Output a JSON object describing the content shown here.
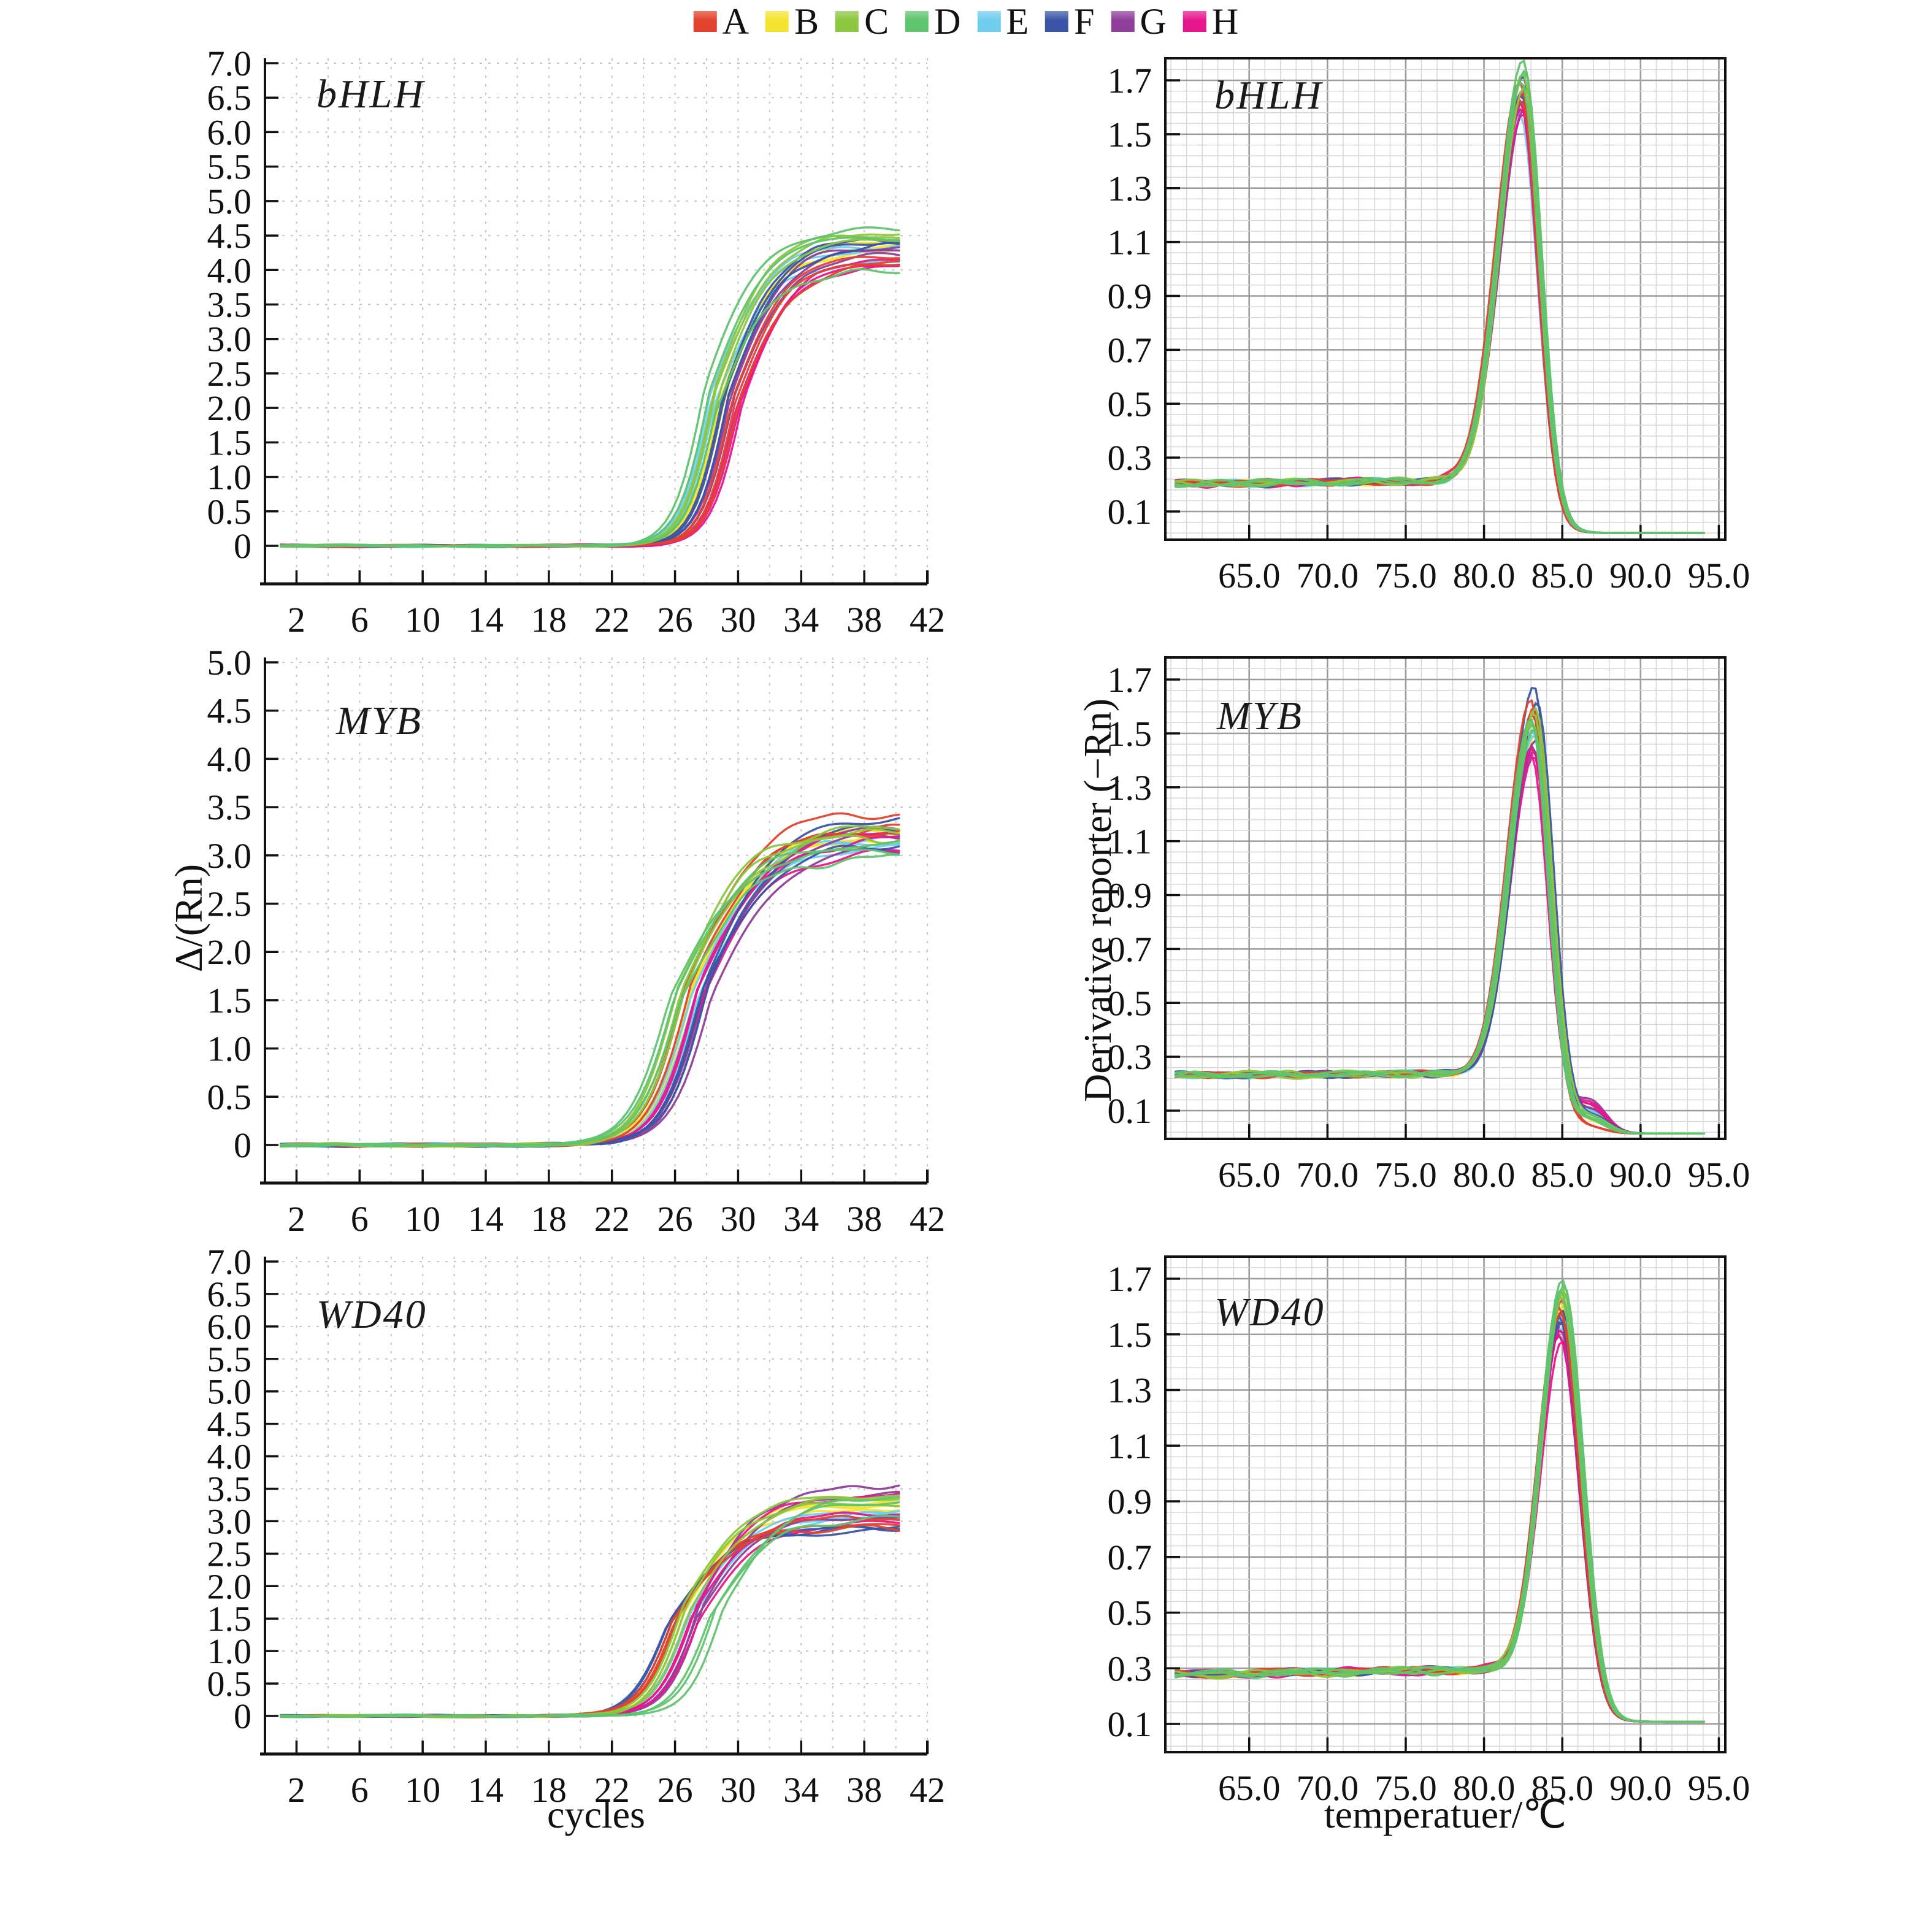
{
  "legend": {
    "items": [
      {
        "label": "A",
        "color": "#e2422e"
      },
      {
        "label": "B",
        "color": "#f4e32f"
      },
      {
        "label": "C",
        "color": "#8cc63f"
      },
      {
        "label": "D",
        "color": "#5fc46e"
      },
      {
        "label": "E",
        "color": "#6fcdee"
      },
      {
        "label": "F",
        "color": "#3a55a5"
      },
      {
        "label": "G",
        "color": "#8f3f99"
      },
      {
        "label": "H",
        "color": "#e8168c"
      }
    ]
  },
  "axis_titles": {
    "amp_x": "cycles",
    "melt_x": "temperatuer/℃",
    "amp_y": "Δ/(Rn)",
    "melt_y": "Derivative reporter (−Rn)"
  },
  "chart_data": [
    {
      "id": "bhlh-amp",
      "type": "line",
      "title": "bHLH",
      "panel": "amplification",
      "row": 1,
      "col": 1,
      "xlim": [
        0,
        42
      ],
      "ylim": [
        0,
        7
      ],
      "grid": "dashed",
      "x_tick_values": [
        2,
        6,
        10,
        14,
        18,
        22,
        26,
        30,
        34,
        38,
        42
      ],
      "x_tick_labels": [
        "2",
        "6",
        "10",
        "14",
        "18",
        "22",
        "26",
        "30",
        "34",
        "38",
        "42"
      ],
      "y_tick_values": [
        7,
        6.5,
        6,
        5.5,
        5,
        4.5,
        4,
        3.5,
        3,
        2.5,
        2,
        1.5,
        1,
        0.5,
        0
      ],
      "y_tick_labels": [
        "7.0",
        "6.5",
        "6.0",
        "5.5",
        "5.0",
        "4.5",
        "4.0",
        "3.5",
        "3.0",
        "2.5",
        "2.0",
        "1.5",
        "1.0",
        "0.5",
        "0"
      ],
      "params": {
        "k": 1.0
      },
      "series": [
        {
          "group": "A",
          "mid": [
            29.8,
            30.0,
            29.6
          ],
          "plateau": [
            4.15,
            4.08,
            4.22
          ]
        },
        {
          "group": "B",
          "mid": [
            29.0,
            29.2,
            28.9
          ],
          "plateau": [
            4.32,
            4.4,
            4.28
          ]
        },
        {
          "group": "C",
          "mid": [
            28.6,
            28.8,
            28.5
          ],
          "plateau": [
            4.5,
            4.44,
            4.55
          ]
        },
        {
          "group": "D",
          "mid": [
            27.9,
            28.2,
            28.6
          ],
          "plateau": [
            4.58,
            4.48,
            3.97
          ]
        },
        {
          "group": "E",
          "mid": [
            28.3,
            28.5,
            28.2
          ],
          "plateau": [
            4.28,
            4.1,
            4.35
          ]
        },
        {
          "group": "F",
          "mid": [
            29.2,
            29.4,
            29.1
          ],
          "plateau": [
            4.42,
            4.35,
            4.46
          ]
        },
        {
          "group": "G",
          "mid": [
            29.5,
            29.7,
            29.4
          ],
          "plateau": [
            4.3,
            4.22,
            4.35
          ]
        },
        {
          "group": "H",
          "mid": [
            30.1,
            30.3,
            29.9
          ],
          "plateau": [
            4.12,
            4.2,
            4.05
          ]
        }
      ]
    },
    {
      "id": "bhlh-melt",
      "type": "line",
      "title": "bHLH",
      "panel": "melt",
      "row": 1,
      "col": 2,
      "xlim": [
        59.8,
        95.3
      ],
      "ylim": [
        0,
        1.79
      ],
      "grid": "fine",
      "x_tick_values": [
        65,
        70,
        75,
        80,
        85,
        90,
        95
      ],
      "x_tick_labels": [
        "65.0",
        "70.0",
        "75.0",
        "80.0",
        "85.0",
        "90.0",
        "95.0"
      ],
      "y_tick_values": [
        1.7,
        1.5,
        1.3,
        1.1,
        0.9,
        0.7,
        0.5,
        0.3,
        0.1
      ],
      "y_tick_labels": [
        "1.7",
        "1.5",
        "1.3",
        "1.1",
        "0.9",
        "0.7",
        "0.5",
        "0.3",
        "0.1"
      ],
      "params": {
        "baseline": 0.203,
        "slope": 0.0006,
        "tail": 0.02,
        "sigma_left": 1.55,
        "sigma_right": 1.05,
        "drop_dx": 2.0,
        "shoulder_dx": 3.6,
        "shoulder_amp": {}
      },
      "series": [
        {
          "group": "A",
          "center": [
            82.3,
            82.5,
            82.4
          ],
          "peak": [
            1.7,
            1.66,
            1.63
          ]
        },
        {
          "group": "B",
          "center": [
            82.4,
            82.6,
            82.5
          ],
          "peak": [
            1.65,
            1.62,
            1.6
          ]
        },
        {
          "group": "C",
          "center": [
            82.5,
            82.4,
            82.6
          ],
          "peak": [
            1.73,
            1.7,
            1.68
          ]
        },
        {
          "group": "D",
          "center": [
            82.5,
            82.6,
            82.4
          ],
          "peak": [
            1.78,
            1.74,
            1.7
          ]
        },
        {
          "group": "E",
          "center": [
            82.4,
            82.5,
            82.3
          ],
          "peak": [
            1.62,
            1.6,
            1.58
          ]
        },
        {
          "group": "F",
          "center": [
            82.5,
            82.6,
            82.4
          ],
          "peak": [
            1.72,
            1.68,
            1.65
          ]
        },
        {
          "group": "G",
          "center": [
            82.4,
            82.5,
            82.6
          ],
          "peak": [
            1.66,
            1.63,
            1.6
          ]
        },
        {
          "group": "H",
          "center": [
            82.3,
            82.4,
            82.5
          ],
          "peak": [
            1.63,
            1.6,
            1.58
          ]
        }
      ]
    },
    {
      "id": "myb-amp",
      "type": "line",
      "title": "MYB",
      "panel": "amplification",
      "row": 2,
      "col": 1,
      "ylabel": "Δ/(Rn)",
      "xlim": [
        0,
        42
      ],
      "ylim": [
        0,
        5
      ],
      "grid": "dashed",
      "x_tick_values": [
        2,
        6,
        10,
        14,
        18,
        22,
        26,
        30,
        34,
        38,
        42
      ],
      "x_tick_labels": [
        "2",
        "6",
        "10",
        "14",
        "18",
        "22",
        "26",
        "30",
        "34",
        "38",
        "42"
      ],
      "y_tick_values": [
        5,
        4.5,
        4,
        3.5,
        3,
        2.5,
        2,
        1.5,
        1,
        0.5,
        0
      ],
      "y_tick_labels": [
        "5.0",
        "4.5",
        "4.0",
        "3.5",
        "3.0",
        "2.5",
        "2.0",
        "1.5",
        "1.0",
        "0.5",
        "0"
      ],
      "params": {
        "k": 1.3
      },
      "series": [
        {
          "group": "A",
          "mid": [
            26.8,
            27.0,
            26.6
          ],
          "plateau": [
            3.45,
            3.3,
            3.25
          ]
        },
        {
          "group": "B",
          "mid": [
            27.0,
            27.2,
            26.9
          ],
          "plateau": [
            3.22,
            3.28,
            3.18
          ]
        },
        {
          "group": "C",
          "mid": [
            26.4,
            26.6,
            26.2
          ],
          "plateau": [
            3.25,
            3.2,
            3.3
          ]
        },
        {
          "group": "D",
          "mid": [
            25.7,
            26.0,
            26.3
          ],
          "plateau": [
            3.05,
            3.12,
            2.98
          ]
        },
        {
          "group": "E",
          "mid": [
            27.3,
            27.5,
            27.1
          ],
          "plateau": [
            3.15,
            3.1,
            3.2
          ]
        },
        {
          "group": "F",
          "mid": [
            27.9,
            28.1,
            27.7
          ],
          "plateau": [
            3.4,
            3.32,
            3.12
          ]
        },
        {
          "group": "G",
          "mid": [
            28.1,
            28.3,
            27.9
          ],
          "plateau": [
            3.3,
            3.08,
            3.22
          ]
        },
        {
          "group": "H",
          "mid": [
            27.5,
            27.7,
            27.4
          ],
          "plateau": [
            3.25,
            3.05,
            3.18
          ]
        }
      ]
    },
    {
      "id": "myb-melt",
      "type": "line",
      "title": "MYB",
      "panel": "melt",
      "row": 2,
      "col": 2,
      "ylabel": "Derivative reporter (−Rn)",
      "xlim": [
        59.8,
        95.3
      ],
      "ylim": [
        0,
        1.79
      ],
      "grid": "fine",
      "x_tick_values": [
        65,
        70,
        75,
        80,
        85,
        90,
        95
      ],
      "x_tick_labels": [
        "65.0",
        "70.0",
        "75.0",
        "80.0",
        "85.0",
        "90.0",
        "95.0"
      ],
      "y_tick_values": [
        1.7,
        1.5,
        1.3,
        1.1,
        0.9,
        0.7,
        0.5,
        0.3,
        0.1
      ],
      "y_tick_labels": [
        "1.7",
        "1.5",
        "1.3",
        "1.1",
        "0.9",
        "0.7",
        "0.5",
        "0.3",
        "0.1"
      ],
      "params": {
        "baseline": 0.232,
        "slope": 0.0003,
        "tail": 0.015,
        "sigma_left": 1.5,
        "sigma_right": 1.0,
        "drop_dx": 2.0,
        "shoulder_dx": 3.7,
        "shoulder_amp": {
          "A": 0.02,
          "B": 0.04,
          "C": 0.05,
          "D": 0.05,
          "E": 0.07,
          "F": 0.05,
          "G": 0.1,
          "H": 0.09
        }
      },
      "series": [
        {
          "group": "A",
          "center": [
            83.0,
            83.2,
            83.1
          ],
          "peak": [
            1.63,
            1.6,
            1.58
          ]
        },
        {
          "group": "B",
          "center": [
            83.1,
            83.3,
            83.2
          ],
          "peak": [
            1.52,
            1.5,
            1.54
          ]
        },
        {
          "group": "C",
          "center": [
            83.2,
            83.1,
            83.3
          ],
          "peak": [
            1.58,
            1.55,
            1.6
          ]
        },
        {
          "group": "D",
          "center": [
            83.1,
            83.2,
            83.0
          ],
          "peak": [
            1.54,
            1.52,
            1.56
          ]
        },
        {
          "group": "E",
          "center": [
            83.2,
            83.3,
            83.1
          ],
          "peak": [
            1.5,
            1.48,
            1.52
          ]
        },
        {
          "group": "F",
          "center": [
            83.2,
            83.4,
            83.1
          ],
          "peak": [
            1.68,
            1.62,
            1.58
          ]
        },
        {
          "group": "G",
          "center": [
            83.1,
            83.2,
            83.3
          ],
          "peak": [
            1.46,
            1.44,
            1.48
          ]
        },
        {
          "group": "H",
          "center": [
            83.0,
            83.1,
            83.2
          ],
          "peak": [
            1.43,
            1.45,
            1.42
          ]
        }
      ]
    },
    {
      "id": "wd40-amp",
      "type": "line",
      "title": "WD40",
      "panel": "amplification",
      "row": 3,
      "col": 1,
      "xlabel": "cycles",
      "xlim": [
        0,
        42
      ],
      "ylim": [
        0,
        7
      ],
      "grid": "dashed",
      "x_tick_values": [
        2,
        6,
        10,
        14,
        18,
        22,
        26,
        30,
        34,
        38,
        42
      ],
      "x_tick_labels": [
        "2",
        "6",
        "10",
        "14",
        "18",
        "22",
        "26",
        "30",
        "34",
        "38",
        "42"
      ],
      "y_tick_values": [
        7,
        6.5,
        6,
        5.5,
        5,
        4.5,
        4,
        3.5,
        3,
        2.5,
        2,
        1.5,
        1,
        0.5,
        0
      ],
      "y_tick_labels": [
        "7.0",
        "6.5",
        "6.0",
        "5.5",
        "5.0",
        "4.5",
        "4.0",
        "3.5",
        "3.0",
        "2.5",
        "2.0",
        "1.5",
        "1.0",
        "0.5",
        "0"
      ],
      "params": {
        "k": 1.15
      },
      "series": [
        {
          "group": "A",
          "mid": [
            26.0,
            26.2,
            25.8
          ],
          "plateau": [
            2.95,
            3.05,
            2.9
          ]
        },
        {
          "group": "B",
          "mid": [
            26.4,
            26.6,
            26.3
          ],
          "plateau": [
            3.25,
            3.18,
            3.28
          ]
        },
        {
          "group": "C",
          "mid": [
            26.7,
            26.9,
            26.5
          ],
          "plateau": [
            3.35,
            3.28,
            3.4
          ]
        },
        {
          "group": "D",
          "mid": [
            28.6,
            29.1,
            28.2
          ],
          "plateau": [
            3.3,
            3.38,
            3.05
          ]
        },
        {
          "group": "E",
          "mid": [
            26.9,
            27.1,
            26.8
          ],
          "plateau": [
            3.1,
            3.05,
            3.15
          ]
        },
        {
          "group": "F",
          "mid": [
            25.6,
            25.8,
            25.5
          ],
          "plateau": [
            2.88,
            2.92,
            2.85
          ]
        },
        {
          "group": "G",
          "mid": [
            27.6,
            27.8,
            27.4
          ],
          "plateau": [
            3.55,
            3.42,
            3.08
          ]
        },
        {
          "group": "H",
          "mid": [
            27.3,
            27.5,
            27.1
          ],
          "plateau": [
            3.4,
            2.98,
            3.12
          ]
        }
      ]
    },
    {
      "id": "wd40-melt",
      "type": "line",
      "title": "WD40",
      "panel": "melt",
      "row": 3,
      "col": 2,
      "xlabel": "temperatuer/℃",
      "xlim": [
        59.8,
        95.3
      ],
      "ylim": [
        0.08,
        1.79
      ],
      "grid": "fine",
      "x_tick_values": [
        65,
        70,
        75,
        80,
        85,
        90,
        95
      ],
      "x_tick_labels": [
        "65.0",
        "70.0",
        "75.0",
        "80.0",
        "85.0",
        "90.0",
        "95.0"
      ],
      "y_tick_values": [
        1.7,
        1.5,
        1.3,
        1.1,
        0.9,
        0.7,
        0.5,
        0.3,
        0.1
      ],
      "y_tick_labels": [
        "1.7",
        "1.5",
        "1.3",
        "1.1",
        "0.9",
        "0.7",
        "0.5",
        "0.3",
        "0.1"
      ],
      "params": {
        "baseline": 0.278,
        "slope": 0.0009,
        "tail": 0.108,
        "sigma_left": 1.35,
        "sigma_right": 1.2,
        "drop_dx": 2.1,
        "shoulder_dx": 3.6,
        "shoulder_amp": {}
      },
      "series": [
        {
          "group": "A",
          "center": [
            84.8,
            85.0,
            84.9
          ],
          "peak": [
            1.6,
            1.63,
            1.58
          ]
        },
        {
          "group": "B",
          "center": [
            84.9,
            85.1,
            85.0
          ],
          "peak": [
            1.62,
            1.65,
            1.6
          ]
        },
        {
          "group": "C",
          "center": [
            85.0,
            84.9,
            85.1
          ],
          "peak": [
            1.67,
            1.64,
            1.66
          ]
        },
        {
          "group": "D",
          "center": [
            85.0,
            85.1,
            84.9
          ],
          "peak": [
            1.7,
            1.68,
            1.66
          ]
        },
        {
          "group": "E",
          "center": [
            84.9,
            85.0,
            84.8
          ],
          "peak": [
            1.55,
            1.57,
            1.53
          ]
        },
        {
          "group": "F",
          "center": [
            84.8,
            84.9,
            85.0
          ],
          "peak": [
            1.57,
            1.55,
            1.59
          ]
        },
        {
          "group": "G",
          "center": [
            84.9,
            85.0,
            84.8
          ],
          "peak": [
            1.52,
            1.55,
            1.5
          ]
        },
        {
          "group": "H",
          "center": [
            84.8,
            84.9,
            85.0
          ],
          "peak": [
            1.5,
            1.52,
            1.48
          ]
        }
      ]
    }
  ]
}
